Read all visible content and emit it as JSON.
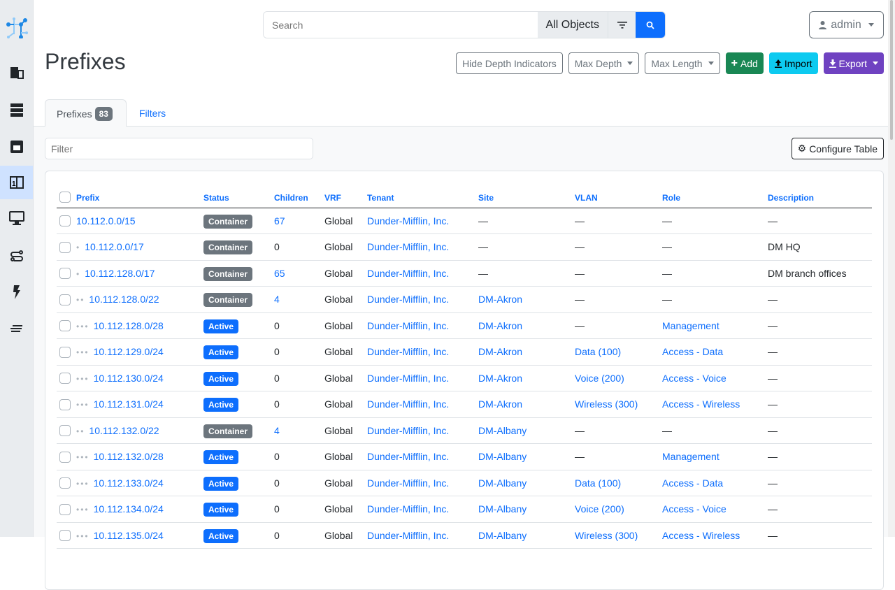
{
  "sidebar": {
    "items": [
      {
        "icon": "netbox-logo-icon"
      },
      {
        "icon": "organization-icon"
      },
      {
        "icon": "devices-icon"
      },
      {
        "icon": "connections-icon"
      },
      {
        "icon": "ipam-icon",
        "active": true
      },
      {
        "icon": "virtualization-icon"
      },
      {
        "icon": "circuits-icon"
      },
      {
        "icon": "power-icon"
      },
      {
        "icon": "provisioning-icon"
      }
    ]
  },
  "search": {
    "placeholder": "Search",
    "scope": "All Objects"
  },
  "user": {
    "label": "admin"
  },
  "page": {
    "title": "Prefixes"
  },
  "actions": {
    "hide_depth": "Hide Depth Indicators",
    "max_depth": "Max Depth",
    "max_length": "Max Length",
    "add": "Add",
    "import": "Import",
    "export": "Export"
  },
  "tabs": {
    "prefixes": "Prefixes",
    "count": "83",
    "filters": "Filters"
  },
  "filter": {
    "placeholder": "Filter"
  },
  "configure": "Configure Table",
  "colors": {
    "container": "#6c757d",
    "active": "#0d6efd"
  },
  "table": {
    "columns": [
      "Prefix",
      "Status",
      "Children",
      "VRF",
      "Tenant",
      "Site",
      "VLAN",
      "Role",
      "Description"
    ],
    "rows": [
      {
        "depth": 0,
        "prefix": "10.112.0.0/15",
        "status": "Container",
        "children": "67",
        "vrf": "Global",
        "tenant": "Dunder-Mifflin, Inc.",
        "site": "—",
        "vlan": "—",
        "role": "—",
        "description": "—"
      },
      {
        "depth": 1,
        "prefix": "10.112.0.0/17",
        "status": "Container",
        "children": "0",
        "vrf": "Global",
        "tenant": "Dunder-Mifflin, Inc.",
        "site": "—",
        "vlan": "—",
        "role": "—",
        "description": "DM HQ"
      },
      {
        "depth": 1,
        "prefix": "10.112.128.0/17",
        "status": "Container",
        "children": "65",
        "vrf": "Global",
        "tenant": "Dunder-Mifflin, Inc.",
        "site": "—",
        "vlan": "—",
        "role": "—",
        "description": "DM branch offices"
      },
      {
        "depth": 2,
        "prefix": "10.112.128.0/22",
        "status": "Container",
        "children": "4",
        "vrf": "Global",
        "tenant": "Dunder-Mifflin, Inc.",
        "site": "DM-Akron",
        "vlan": "—",
        "role": "—",
        "description": "—"
      },
      {
        "depth": 3,
        "prefix": "10.112.128.0/28",
        "status": "Active",
        "children": "0",
        "vrf": "Global",
        "tenant": "Dunder-Mifflin, Inc.",
        "site": "DM-Akron",
        "vlan": "—",
        "role": "Management",
        "description": "—"
      },
      {
        "depth": 3,
        "prefix": "10.112.129.0/24",
        "status": "Active",
        "children": "0",
        "vrf": "Global",
        "tenant": "Dunder-Mifflin, Inc.",
        "site": "DM-Akron",
        "vlan": "Data (100)",
        "role": "Access - Data",
        "description": "—"
      },
      {
        "depth": 3,
        "prefix": "10.112.130.0/24",
        "status": "Active",
        "children": "0",
        "vrf": "Global",
        "tenant": "Dunder-Mifflin, Inc.",
        "site": "DM-Akron",
        "vlan": "Voice (200)",
        "role": "Access - Voice",
        "description": "—"
      },
      {
        "depth": 3,
        "prefix": "10.112.131.0/24",
        "status": "Active",
        "children": "0",
        "vrf": "Global",
        "tenant": "Dunder-Mifflin, Inc.",
        "site": "DM-Akron",
        "vlan": "Wireless (300)",
        "role": "Access - Wireless",
        "description": "—"
      },
      {
        "depth": 2,
        "prefix": "10.112.132.0/22",
        "status": "Container",
        "children": "4",
        "vrf": "Global",
        "tenant": "Dunder-Mifflin, Inc.",
        "site": "DM-Albany",
        "vlan": "—",
        "role": "—",
        "description": "—"
      },
      {
        "depth": 3,
        "prefix": "10.112.132.0/28",
        "status": "Active",
        "children": "0",
        "vrf": "Global",
        "tenant": "Dunder-Mifflin, Inc.",
        "site": "DM-Albany",
        "vlan": "—",
        "role": "Management",
        "description": "—"
      },
      {
        "depth": 3,
        "prefix": "10.112.133.0/24",
        "status": "Active",
        "children": "0",
        "vrf": "Global",
        "tenant": "Dunder-Mifflin, Inc.",
        "site": "DM-Albany",
        "vlan": "Data (100)",
        "role": "Access - Data",
        "description": "—"
      },
      {
        "depth": 3,
        "prefix": "10.112.134.0/24",
        "status": "Active",
        "children": "0",
        "vrf": "Global",
        "tenant": "Dunder-Mifflin, Inc.",
        "site": "DM-Albany",
        "vlan": "Voice (200)",
        "role": "Access - Voice",
        "description": "—"
      },
      {
        "depth": 3,
        "prefix": "10.112.135.0/24",
        "status": "Active",
        "children": "0",
        "vrf": "Global",
        "tenant": "Dunder-Mifflin, Inc.",
        "site": "DM-Albany",
        "vlan": "Wireless (300)",
        "role": "Access - Wireless",
        "description": "—"
      }
    ]
  }
}
